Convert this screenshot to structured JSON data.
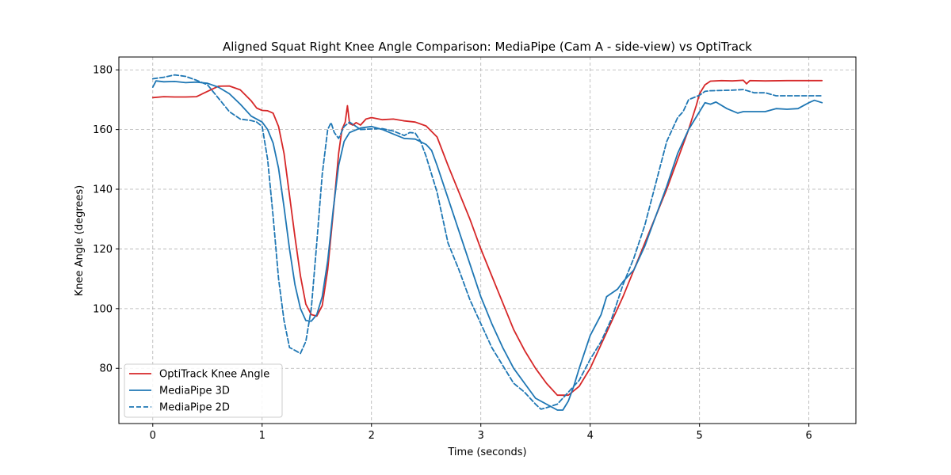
{
  "chart_data": {
    "type": "line",
    "title": "Aligned Squat Right Knee Angle Comparison: MediaPipe (Cam A - side-view) vs OptiTrack",
    "xlabel": "Time (seconds)",
    "ylabel": "Knee Angle (degrees)",
    "xlim": [
      -0.31,
      6.43
    ],
    "ylim": [
      61.5,
      184.3
    ],
    "xticks": [
      0,
      1,
      2,
      3,
      4,
      5,
      6
    ],
    "yticks": [
      80,
      100,
      120,
      140,
      160,
      180
    ],
    "grid": true,
    "legend_position": "lower-left",
    "series": [
      {
        "name": "OptiTrack Knee Angle",
        "color": "#d62728",
        "dash": "solid",
        "points": [
          [
            0,
            170.7
          ],
          [
            0.1,
            171
          ],
          [
            0.2,
            170.9
          ],
          [
            0.3,
            170.9
          ],
          [
            0.4,
            171
          ],
          [
            0.5,
            172.8
          ],
          [
            0.6,
            174.5
          ],
          [
            0.7,
            174.6
          ],
          [
            0.8,
            173.3
          ],
          [
            0.9,
            169.6
          ],
          [
            0.95,
            167.2
          ],
          [
            1.0,
            166.4
          ],
          [
            1.05,
            166.3
          ],
          [
            1.1,
            165.5
          ],
          [
            1.15,
            161
          ],
          [
            1.2,
            152
          ],
          [
            1.25,
            138
          ],
          [
            1.3,
            124
          ],
          [
            1.35,
            111
          ],
          [
            1.4,
            101.5
          ],
          [
            1.45,
            98
          ],
          [
            1.5,
            97.5
          ],
          [
            1.55,
            101
          ],
          [
            1.6,
            113
          ],
          [
            1.65,
            132
          ],
          [
            1.7,
            152
          ],
          [
            1.73,
            160
          ],
          [
            1.76,
            162.5
          ],
          [
            1.78,
            168
          ],
          [
            1.8,
            162
          ],
          [
            1.83,
            161.5
          ],
          [
            1.86,
            162.3
          ],
          [
            1.9,
            161.5
          ],
          [
            1.95,
            163.5
          ],
          [
            2.0,
            164
          ],
          [
            2.1,
            163.3
          ],
          [
            2.2,
            163.5
          ],
          [
            2.3,
            162.9
          ],
          [
            2.4,
            162.5
          ],
          [
            2.5,
            161.2
          ],
          [
            2.6,
            157.5
          ],
          [
            2.7,
            148
          ],
          [
            2.8,
            139
          ],
          [
            2.9,
            130
          ],
          [
            3.0,
            120
          ],
          [
            3.1,
            111
          ],
          [
            3.2,
            102
          ],
          [
            3.3,
            93
          ],
          [
            3.4,
            86
          ],
          [
            3.5,
            80
          ],
          [
            3.6,
            75
          ],
          [
            3.7,
            71
          ],
          [
            3.8,
            71
          ],
          [
            3.9,
            74
          ],
          [
            4.0,
            80
          ],
          [
            4.1,
            88
          ],
          [
            4.2,
            96
          ],
          [
            4.3,
            104
          ],
          [
            4.4,
            113
          ],
          [
            4.5,
            122
          ],
          [
            4.6,
            131
          ],
          [
            4.7,
            140
          ],
          [
            4.8,
            150
          ],
          [
            4.9,
            160
          ],
          [
            4.97,
            168
          ],
          [
            5.0,
            172
          ],
          [
            5.05,
            175
          ],
          [
            5.1,
            176.2
          ],
          [
            5.2,
            176.4
          ],
          [
            5.3,
            176.3
          ],
          [
            5.4,
            176.5
          ],
          [
            5.43,
            175.3
          ],
          [
            5.46,
            176.4
          ],
          [
            5.6,
            176.3
          ],
          [
            5.8,
            176.4
          ],
          [
            6.0,
            176.4
          ],
          [
            6.12,
            176.4
          ]
        ]
      },
      {
        "name": "MediaPipe 3D",
        "color": "#1f77b4",
        "dash": "solid",
        "points": [
          [
            0,
            174.2
          ],
          [
            0.03,
            176.3
          ],
          [
            0.1,
            176
          ],
          [
            0.2,
            176.1
          ],
          [
            0.3,
            175.7
          ],
          [
            0.4,
            175.9
          ],
          [
            0.5,
            175.5
          ],
          [
            0.6,
            174.2
          ],
          [
            0.7,
            172
          ],
          [
            0.8,
            168.5
          ],
          [
            0.9,
            164.5
          ],
          [
            1.0,
            162.5
          ],
          [
            1.05,
            160
          ],
          [
            1.1,
            155.5
          ],
          [
            1.15,
            147
          ],
          [
            1.2,
            134
          ],
          [
            1.25,
            120
          ],
          [
            1.3,
            108
          ],
          [
            1.35,
            100
          ],
          [
            1.4,
            96
          ],
          [
            1.45,
            95.8
          ],
          [
            1.5,
            98
          ],
          [
            1.55,
            104
          ],
          [
            1.6,
            116
          ],
          [
            1.65,
            133
          ],
          [
            1.7,
            148
          ],
          [
            1.75,
            156
          ],
          [
            1.8,
            159
          ],
          [
            1.9,
            160.5
          ],
          [
            2.0,
            161
          ],
          [
            2.1,
            160
          ],
          [
            2.2,
            158.5
          ],
          [
            2.3,
            157
          ],
          [
            2.4,
            156.8
          ],
          [
            2.5,
            155
          ],
          [
            2.55,
            153
          ],
          [
            2.6,
            148
          ],
          [
            2.7,
            137
          ],
          [
            2.8,
            126
          ],
          [
            2.9,
            115
          ],
          [
            3.0,
            104
          ],
          [
            3.1,
            95
          ],
          [
            3.2,
            87
          ],
          [
            3.3,
            80
          ],
          [
            3.4,
            75
          ],
          [
            3.5,
            70
          ],
          [
            3.6,
            68
          ],
          [
            3.7,
            66
          ],
          [
            3.75,
            66
          ],
          [
            3.8,
            69
          ],
          [
            3.85,
            74
          ],
          [
            3.9,
            80
          ],
          [
            4.0,
            91
          ],
          [
            4.1,
            98
          ],
          [
            4.15,
            104
          ],
          [
            4.25,
            106.5
          ],
          [
            4.3,
            109
          ],
          [
            4.4,
            113
          ],
          [
            4.5,
            121
          ],
          [
            4.6,
            131
          ],
          [
            4.7,
            141
          ],
          [
            4.8,
            152
          ],
          [
            4.9,
            160
          ],
          [
            5.0,
            166
          ],
          [
            5.05,
            169
          ],
          [
            5.1,
            168.5
          ],
          [
            5.15,
            169.2
          ],
          [
            5.25,
            167
          ],
          [
            5.35,
            165.5
          ],
          [
            5.4,
            166
          ],
          [
            5.6,
            166
          ],
          [
            5.7,
            167
          ],
          [
            5.8,
            166.8
          ],
          [
            5.9,
            167
          ],
          [
            6.0,
            169
          ],
          [
            6.05,
            169.8
          ],
          [
            6.12,
            169
          ]
        ]
      },
      {
        "name": "MediaPipe 2D",
        "color": "#1f77b4",
        "dash": "dashed",
        "points": [
          [
            0,
            177
          ],
          [
            0.1,
            177.5
          ],
          [
            0.2,
            178.3
          ],
          [
            0.3,
            177.8
          ],
          [
            0.4,
            176.5
          ],
          [
            0.5,
            175
          ],
          [
            0.6,
            170.5
          ],
          [
            0.7,
            166
          ],
          [
            0.8,
            163.5
          ],
          [
            0.9,
            163
          ],
          [
            0.95,
            162.5
          ],
          [
            1.0,
            161
          ],
          [
            1.05,
            150
          ],
          [
            1.1,
            131
          ],
          [
            1.15,
            110
          ],
          [
            1.2,
            96
          ],
          [
            1.25,
            87
          ],
          [
            1.3,
            86
          ],
          [
            1.35,
            85
          ],
          [
            1.4,
            89
          ],
          [
            1.45,
            100
          ],
          [
            1.5,
            122
          ],
          [
            1.55,
            145
          ],
          [
            1.6,
            160
          ],
          [
            1.63,
            162.3
          ],
          [
            1.66,
            159
          ],
          [
            1.7,
            157
          ],
          [
            1.75,
            161
          ],
          [
            1.8,
            162.5
          ],
          [
            1.9,
            160
          ],
          [
            2.0,
            160.2
          ],
          [
            2.1,
            160.3
          ],
          [
            2.2,
            159.5
          ],
          [
            2.3,
            158
          ],
          [
            2.35,
            159
          ],
          [
            2.4,
            158.8
          ],
          [
            2.45,
            156
          ],
          [
            2.5,
            151
          ],
          [
            2.6,
            139
          ],
          [
            2.7,
            122
          ],
          [
            2.8,
            113
          ],
          [
            2.9,
            103
          ],
          [
            3.0,
            95
          ],
          [
            3.1,
            87
          ],
          [
            3.2,
            81
          ],
          [
            3.3,
            75
          ],
          [
            3.4,
            72
          ],
          [
            3.5,
            68
          ],
          [
            3.55,
            66.3
          ],
          [
            3.6,
            66.8
          ],
          [
            3.7,
            68
          ],
          [
            3.8,
            72
          ],
          [
            3.9,
            76
          ],
          [
            4.0,
            83
          ],
          [
            4.1,
            89
          ],
          [
            4.2,
            97
          ],
          [
            4.3,
            108
          ],
          [
            4.4,
            117
          ],
          [
            4.5,
            128
          ],
          [
            4.6,
            142
          ],
          [
            4.7,
            156
          ],
          [
            4.8,
            164
          ],
          [
            4.85,
            166
          ],
          [
            4.9,
            170
          ],
          [
            5.0,
            171.5
          ],
          [
            5.05,
            172.8
          ],
          [
            5.1,
            173
          ],
          [
            5.3,
            173.2
          ],
          [
            5.4,
            173.4
          ],
          [
            5.5,
            172.3
          ],
          [
            5.6,
            172.3
          ],
          [
            5.7,
            171.3
          ],
          [
            6.0,
            171.3
          ],
          [
            6.12,
            171.3
          ]
        ]
      }
    ]
  }
}
